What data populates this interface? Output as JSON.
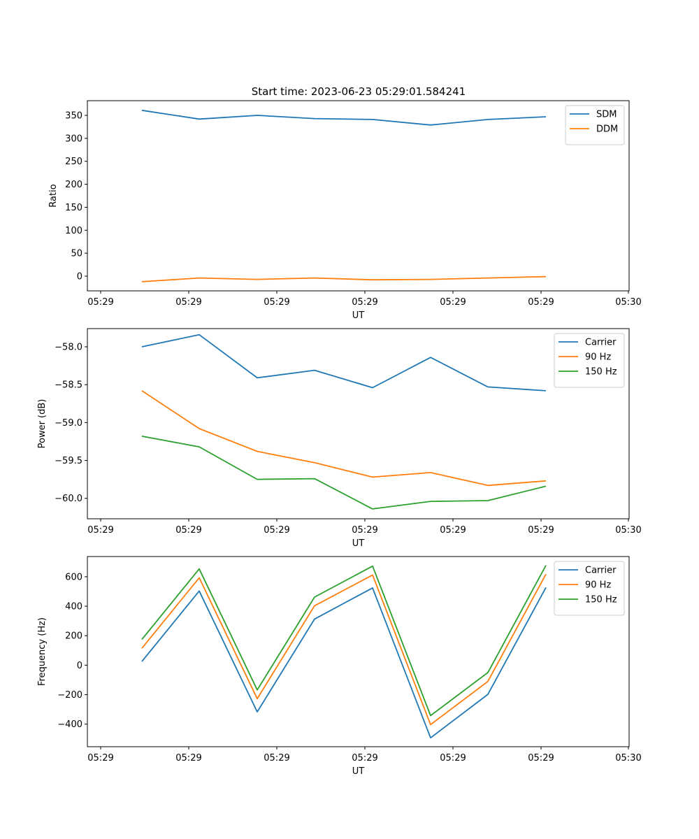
{
  "figure": {
    "title": "Start time: 2023-06-23 05:29:01.584241"
  },
  "chart_data": [
    {
      "type": "line",
      "title": "Start time: 2023-06-23 05:29:01.584241",
      "xlabel": "UT",
      "ylabel": "Ratio",
      "x_tick_labels": [
        "05:29",
        "05:29",
        "05:29",
        "05:29",
        "05:29",
        "05:29",
        "05:30"
      ],
      "y_ticks": [
        0,
        50,
        100,
        150,
        200,
        250,
        300,
        350
      ],
      "ylim": [
        -32,
        382
      ],
      "legend_position": "top-right",
      "grid": false,
      "series": [
        {
          "name": "SDM",
          "color": "#1f77b4",
          "values": [
            361,
            342,
            350,
            343,
            341,
            329,
            341,
            347
          ]
        },
        {
          "name": "DDM",
          "color": "#ff7f0e",
          "values": [
            -12,
            -4,
            -7,
            -4,
            -8,
            -7,
            -4,
            -1
          ]
        }
      ]
    },
    {
      "type": "line",
      "title": "",
      "xlabel": "UT",
      "ylabel": "Power (dB)",
      "x_tick_labels": [
        "05:29",
        "05:29",
        "05:29",
        "05:29",
        "05:29",
        "05:29",
        "05:30"
      ],
      "y_ticks": [
        -60.0,
        -59.5,
        -59.0,
        -58.5,
        -58.0
      ],
      "y_tick_labels": [
        "−60.0",
        "−59.5",
        "−59.0",
        "−58.5",
        "−58.0"
      ],
      "ylim": [
        -60.27,
        -57.76
      ],
      "legend_position": "top-right",
      "grid": false,
      "series": [
        {
          "name": "Carrier",
          "color": "#1f77b4",
          "values": [
            -58.0,
            -57.84,
            -58.41,
            -58.31,
            -58.54,
            -58.14,
            -58.53,
            -58.58
          ]
        },
        {
          "name": "90 Hz",
          "color": "#ff7f0e",
          "values": [
            -58.58,
            -59.08,
            -59.38,
            -59.53,
            -59.72,
            -59.66,
            -59.83,
            -59.77
          ]
        },
        {
          "name": "150 Hz",
          "color": "#2ca02c",
          "values": [
            -59.18,
            -59.32,
            -59.75,
            -59.74,
            -60.14,
            -60.04,
            -60.03,
            -59.84
          ]
        }
      ]
    },
    {
      "type": "line",
      "title": "",
      "xlabel": "UT",
      "ylabel": "Frequency (Hz)",
      "x_tick_labels": [
        "05:29",
        "05:29",
        "05:29",
        "05:29",
        "05:29",
        "05:29",
        "05:30"
      ],
      "y_ticks": [
        -400,
        -200,
        0,
        200,
        400,
        600
      ],
      "y_tick_labels": [
        "−400",
        "−200",
        "0",
        "200",
        "400",
        "600"
      ],
      "ylim": [
        -553,
        737
      ],
      "legend_position": "top-right",
      "grid": false,
      "series": [
        {
          "name": "Carrier",
          "color": "#1f77b4",
          "values": [
            25,
            503,
            -317,
            313,
            524,
            -493,
            -198,
            527
          ]
        },
        {
          "name": "90 Hz",
          "color": "#ff7f0e",
          "values": [
            115,
            593,
            -227,
            403,
            612,
            -403,
            -110,
            617
          ]
        },
        {
          "name": "150 Hz",
          "color": "#2ca02c",
          "values": [
            175,
            653,
            -168,
            462,
            672,
            -342,
            -50,
            677
          ]
        }
      ]
    }
  ]
}
